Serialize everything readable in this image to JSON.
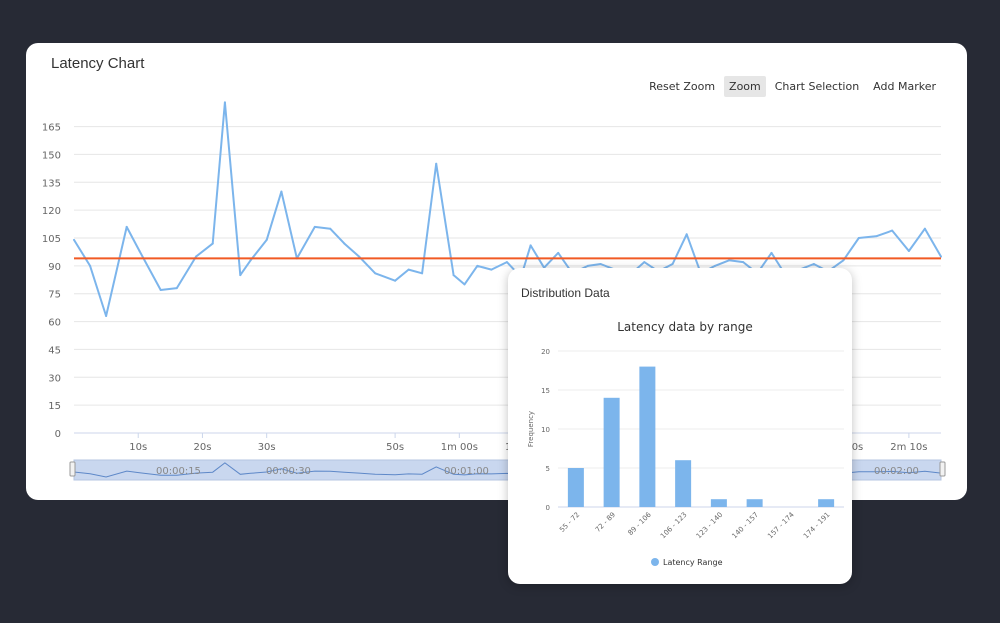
{
  "main_card": {
    "title": "Latency Chart",
    "toolbar": {
      "reset_zoom": "Reset Zoom",
      "zoom": "Zoom",
      "chart_selection": "Chart Selection",
      "add_marker": "Add Marker"
    }
  },
  "dist_card": {
    "title": "Distribution Data"
  },
  "colors": {
    "line": "#7cb5ec",
    "threshold": "#f15a24",
    "bar": "#7cb5ec",
    "navigator_fill": "#c9d7ef",
    "background": "#272a35"
  },
  "chart_data": [
    {
      "type": "line",
      "ylim": [
        0,
        175
      ],
      "yticks": [
        0,
        15,
        30,
        45,
        60,
        75,
        90,
        105,
        120,
        135,
        150,
        165
      ],
      "xlim": [
        0,
        135
      ],
      "xticks": [
        {
          "t": 10,
          "label": "10s"
        },
        {
          "t": 20,
          "label": "20s"
        },
        {
          "t": 30,
          "label": "30s"
        },
        {
          "t": 50,
          "label": "50s"
        },
        {
          "t": 60,
          "label": "1m 00s"
        },
        {
          "t": 70,
          "label": "1m 10s"
        },
        {
          "t": 120,
          "label": "2m 00s"
        },
        {
          "t": 130,
          "label": "2m 10s"
        }
      ],
      "threshold": 94,
      "series": [
        {
          "x": [
            0,
            2.5,
            5,
            8.2,
            10.2,
            13.5,
            16,
            19,
            21.6,
            23.5,
            25.9,
            27.5,
            30,
            32.3,
            34.7,
            37.5,
            39.9,
            42.1,
            44.4,
            46.9,
            50,
            52.1,
            54.2,
            56.4,
            59.1,
            60.8,
            62.8,
            65,
            67.4,
            69.6,
            71.1,
            73.2,
            75.4,
            77.6,
            80,
            82,
            84.2,
            86.5,
            88.8,
            91,
            93.2,
            95.4,
            97.6,
            99.8,
            102,
            104.2,
            106.4,
            108.6,
            110.8,
            113,
            115.2,
            117.4,
            119.8,
            122.2,
            125,
            127.4,
            130,
            132.5,
            135
          ],
          "y": [
            104,
            90,
            63,
            111,
            98,
            77,
            78,
            95,
            102,
            178,
            85,
            93,
            104,
            130,
            94,
            111,
            110,
            102,
            95,
            86,
            82,
            88,
            86,
            145,
            85,
            80,
            90,
            88,
            92,
            84,
            101,
            89,
            97,
            86,
            90,
            91,
            88,
            85,
            92,
            87,
            91,
            107,
            86,
            90,
            93,
            92,
            86,
            97,
            85,
            88,
            91,
            87,
            93,
            105,
            106,
            109,
            98,
            110,
            95
          ]
        }
      ]
    },
    {
      "type": "bar",
      "title": "Latency data by range",
      "ylabel": "Frequency",
      "ylim": [
        0,
        20
      ],
      "yticks": [
        0,
        5,
        10,
        15,
        20
      ],
      "categories": [
        "55 - 72",
        "72 - 89",
        "89 - 106",
        "106 - 123",
        "123 - 140",
        "140 - 157",
        "157 - 174",
        "174 - 191"
      ],
      "series": [
        {
          "name": "Latency Range",
          "values": [
            5,
            14,
            18,
            6,
            1,
            1,
            0,
            1
          ]
        }
      ]
    }
  ],
  "navigator": {
    "labels": [
      "00:00:15",
      "00:00:30",
      "00:01:00",
      "00:02:00"
    ]
  }
}
